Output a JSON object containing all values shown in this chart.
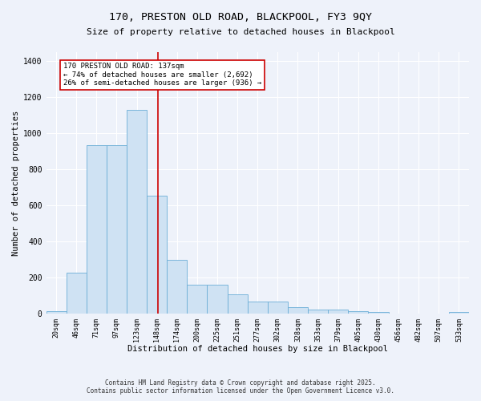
{
  "title_line1": "170, PRESTON OLD ROAD, BLACKPOOL, FY3 9QY",
  "title_line2": "Size of property relative to detached houses in Blackpool",
  "xlabel": "Distribution of detached houses by size in Blackpool",
  "ylabel": "Number of detached properties",
  "categories": [
    "20sqm",
    "46sqm",
    "71sqm",
    "97sqm",
    "123sqm",
    "148sqm",
    "174sqm",
    "200sqm",
    "225sqm",
    "251sqm",
    "277sqm",
    "302sqm",
    "328sqm",
    "353sqm",
    "379sqm",
    "405sqm",
    "430sqm",
    "456sqm",
    "482sqm",
    "507sqm",
    "533sqm"
  ],
  "values": [
    15,
    225,
    935,
    935,
    1130,
    655,
    300,
    160,
    160,
    105,
    65,
    65,
    35,
    20,
    20,
    15,
    10,
    0,
    0,
    0,
    10
  ],
  "bar_color": "#cfe2f3",
  "bar_edge_color": "#6baed6",
  "vline_color": "#cc0000",
  "annotation_title": "170 PRESTON OLD ROAD: 137sqm",
  "annotation_line1": "← 74% of detached houses are smaller (2,692)",
  "annotation_line2": "26% of semi-detached houses are larger (936) →",
  "annotation_box_color": "#ffffff",
  "annotation_box_edge": "#cc0000",
  "ylim": [
    0,
    1450
  ],
  "yticks": [
    0,
    200,
    400,
    600,
    800,
    1000,
    1200,
    1400
  ],
  "background_color": "#eef2fa",
  "grid_color": "#ffffff",
  "footer_line1": "Contains HM Land Registry data © Crown copyright and database right 2025.",
  "footer_line2": "Contains public sector information licensed under the Open Government Licence v3.0."
}
